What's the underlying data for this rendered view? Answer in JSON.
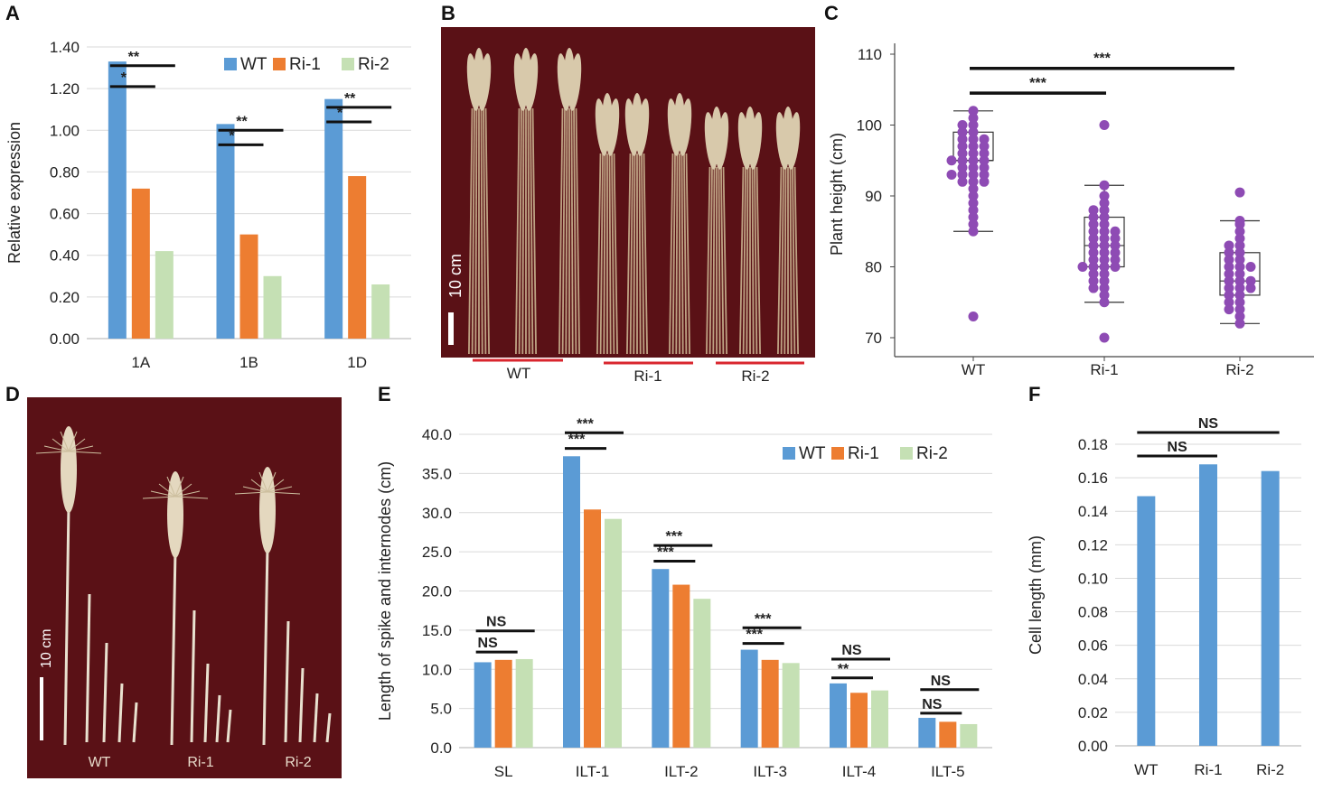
{
  "colors": {
    "wt": "#5b9bd5",
    "ri1": "#ed7d31",
    "ri2": "#c5e0b4",
    "dot": "#8e4bb4",
    "photo_bg": "#5a1116",
    "stem": "#c9b28f",
    "underline_red": "#d9262e"
  },
  "panels": {
    "a": "A",
    "b": "B",
    "c": "C",
    "d": "D",
    "e": "E",
    "f": "F"
  },
  "chart_data": [
    {
      "id": "A",
      "type": "bar",
      "ylabel": "Relative expression",
      "ylim": [
        0,
        1.4
      ],
      "yticks": [
        "0.00",
        "0.20",
        "0.40",
        "0.60",
        "0.80",
        "1.00",
        "1.20",
        "1.40"
      ],
      "categories": [
        "1A",
        "1B",
        "1D"
      ],
      "series": [
        {
          "name": "WT",
          "values": [
            1.33,
            1.03,
            1.15
          ]
        },
        {
          "name": "Ri-1",
          "values": [
            0.72,
            0.5,
            0.78
          ]
        },
        {
          "name": "Ri-2",
          "values": [
            0.42,
            0.3,
            0.26
          ]
        }
      ],
      "legend": [
        "WT",
        "Ri-1",
        "Ri-2"
      ],
      "significance": [
        {
          "group": 0,
          "to": 1,
          "label": "*",
          "y": 1.21
        },
        {
          "group": 0,
          "to": 2,
          "label": "**",
          "y": 1.31
        },
        {
          "group": 1,
          "to": 1,
          "label": "*",
          "y": 0.93
        },
        {
          "group": 1,
          "to": 2,
          "label": "**",
          "y": 1.0
        },
        {
          "group": 2,
          "to": 1,
          "label": "*",
          "y": 1.04
        },
        {
          "group": 2,
          "to": 2,
          "label": "**",
          "y": 1.11
        }
      ]
    },
    {
      "id": "C",
      "type": "scatter",
      "ylabel": "Plant height (cm)",
      "ylim": [
        68,
        112
      ],
      "yticks": [
        "70",
        "80",
        "90",
        "100",
        "110"
      ],
      "categories": [
        "WT",
        "Ri-1",
        "Ri-2"
      ],
      "boxes": [
        {
          "min": 85,
          "q1": 95,
          "median": 95,
          "q3": 99,
          "max": 102
        },
        {
          "min": 75,
          "q1": 80,
          "median": 83,
          "q3": 87,
          "max": 91.5
        },
        {
          "min": 72,
          "q1": 76,
          "median": 78,
          "q3": 82,
          "max": 86.5
        }
      ],
      "points": [
        [
          102,
          101,
          100,
          100,
          99,
          99,
          98,
          98,
          98,
          97,
          97,
          97,
          96,
          96,
          96,
          95,
          95,
          95,
          95,
          94,
          94,
          94,
          93,
          93,
          93,
          93,
          92,
          92,
          92,
          91,
          90,
          89,
          88,
          87,
          86,
          85,
          73
        ],
        [
          100,
          91.5,
          90,
          89,
          88,
          88,
          87,
          87,
          86,
          86,
          85,
          85,
          85,
          84,
          84,
          84,
          83,
          83,
          83,
          82,
          82,
          82,
          81,
          81,
          81,
          80,
          80,
          80,
          80,
          79,
          79,
          78,
          78,
          77,
          77,
          76,
          75,
          70
        ],
        [
          90.5,
          86.5,
          86,
          85,
          84,
          83,
          83,
          82,
          82,
          81,
          81,
          80,
          80,
          80,
          79,
          79,
          78,
          78,
          78,
          77,
          77,
          77,
          76,
          76,
          75,
          75,
          74,
          74,
          73,
          72
        ]
      ],
      "significance": [
        {
          "label": "***",
          "from": 0,
          "to": 1,
          "y": 104.5
        },
        {
          "label": "***",
          "from": 0,
          "to": 2,
          "y": 108
        }
      ]
    },
    {
      "id": "E",
      "type": "bar",
      "ylabel": "Length of spike and internodes (cm)",
      "ylim": [
        0,
        40
      ],
      "yticks": [
        "0.0",
        "5.0",
        "10.0",
        "15.0",
        "20.0",
        "25.0",
        "30.0",
        "35.0",
        "40.0"
      ],
      "categories": [
        "SL",
        "ILT-1",
        "ILT-2",
        "ILT-3",
        "ILT-4",
        "ILT-5"
      ],
      "series": [
        {
          "name": "WT",
          "values": [
            10.9,
            37.2,
            22.8,
            12.5,
            8.2,
            3.8
          ]
        },
        {
          "name": "Ri-1",
          "values": [
            11.2,
            30.4,
            20.8,
            11.2,
            7.0,
            3.3
          ]
        },
        {
          "name": "Ri-2",
          "values": [
            11.3,
            29.2,
            19.0,
            10.8,
            7.3,
            3.0
          ]
        }
      ],
      "legend": [
        "WT",
        "Ri-1",
        "Ri-2"
      ],
      "significance": [
        {
          "group": 0,
          "to": 1,
          "label": "NS",
          "y": 12.2
        },
        {
          "group": 0,
          "to": 2,
          "label": "NS",
          "y": 14.9
        },
        {
          "group": 1,
          "to": 1,
          "label": "***",
          "y": 38.2
        },
        {
          "group": 1,
          "to": 2,
          "label": "***",
          "y": 40.2
        },
        {
          "group": 2,
          "to": 1,
          "label": "***",
          "y": 23.8
        },
        {
          "group": 2,
          "to": 2,
          "label": "***",
          "y": 25.8
        },
        {
          "group": 3,
          "to": 1,
          "label": "***",
          "y": 13.3
        },
        {
          "group": 3,
          "to": 2,
          "label": "***",
          "y": 15.3
        },
        {
          "group": 4,
          "to": 1,
          "label": "**",
          "y": 8.9
        },
        {
          "group": 4,
          "to": 2,
          "label": "NS",
          "y": 11.3
        },
        {
          "group": 5,
          "to": 1,
          "label": "NS",
          "y": 4.4
        },
        {
          "group": 5,
          "to": 2,
          "label": "NS",
          "y": 7.4
        }
      ]
    },
    {
      "id": "F",
      "type": "bar",
      "ylabel": "Cell length (mm)",
      "ylim": [
        0,
        0.18
      ],
      "yticks": [
        "0.00",
        "0.02",
        "0.04",
        "0.06",
        "0.08",
        "0.10",
        "0.12",
        "0.14",
        "0.16",
        "0.18"
      ],
      "categories": [
        "WT",
        "Ri-1",
        "Ri-2"
      ],
      "values": [
        0.149,
        0.168,
        0.164
      ],
      "significance": [
        {
          "from": 0,
          "to": 1,
          "label": "NS",
          "y": 0.173
        },
        {
          "from": 0,
          "to": 2,
          "label": "NS",
          "y": 0.187
        }
      ]
    }
  ],
  "photos": {
    "b": {
      "scale_label": "10 cm",
      "groups": [
        "WT",
        "Ri-1",
        "Ri-2"
      ]
    },
    "d": {
      "scale_label": "10 cm",
      "groups": [
        "WT",
        "Ri-1",
        "Ri-2"
      ]
    }
  }
}
